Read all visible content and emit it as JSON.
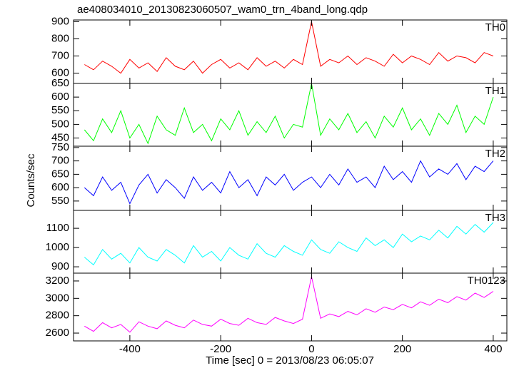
{
  "chart_data": {
    "type": "line",
    "title": "ae408034010_20130823060507_wam0_trn_4band_long.qdp",
    "xlabel": "Time [sec] 0 = 2013/08/23 06:05:07",
    "ylabel": "Counts/sec",
    "xlim": [
      -524,
      430
    ],
    "xticks": [
      -400,
      -200,
      0,
      200,
      400
    ],
    "x": [
      -500,
      -480,
      -460,
      -440,
      -420,
      -400,
      -380,
      -360,
      -340,
      -320,
      -300,
      -280,
      -260,
      -240,
      -220,
      -200,
      -180,
      -160,
      -140,
      -120,
      -100,
      -80,
      -60,
      -40,
      -20,
      0,
      20,
      40,
      60,
      80,
      100,
      120,
      140,
      160,
      180,
      200,
      220,
      240,
      260,
      280,
      300,
      320,
      340,
      360,
      380,
      400
    ],
    "series": [
      {
        "name": "TH0",
        "color": "#ff0000",
        "ylim": [
          540,
          910
        ],
        "yticks": [
          600,
          700,
          800,
          900
        ],
        "values": [
          650,
          620,
          670,
          640,
          600,
          680,
          630,
          660,
          610,
          690,
          640,
          620,
          670,
          600,
          650,
          680,
          630,
          660,
          620,
          690,
          640,
          670,
          630,
          680,
          650,
          900,
          640,
          680,
          660,
          700,
          650,
          690,
          670,
          640,
          710,
          660,
          700,
          680,
          650,
          720,
          670,
          700,
          690,
          660,
          720,
          700
        ]
      },
      {
        "name": "TH1",
        "color": "#00ff00",
        "ylim": [
          420,
          650
        ],
        "yticks": [
          450,
          500,
          550,
          600,
          650
        ],
        "values": [
          480,
          440,
          520,
          470,
          550,
          450,
          500,
          430,
          530,
          480,
          460,
          560,
          470,
          500,
          440,
          520,
          480,
          550,
          460,
          510,
          470,
          530,
          450,
          500,
          490,
          650,
          460,
          520,
          480,
          540,
          470,
          510,
          450,
          530,
          490,
          560,
          480,
          520,
          460,
          540,
          500,
          570,
          470,
          530,
          500,
          600
        ]
      },
      {
        "name": "TH2",
        "color": "#0000ff",
        "ylim": [
          515,
          755
        ],
        "yticks": [
          550,
          600,
          650,
          700,
          750
        ],
        "values": [
          600,
          570,
          640,
          590,
          620,
          540,
          610,
          650,
          580,
          630,
          600,
          560,
          640,
          590,
          620,
          580,
          660,
          600,
          630,
          570,
          640,
          610,
          650,
          590,
          620,
          640,
          600,
          650,
          610,
          670,
          620,
          640,
          600,
          680,
          630,
          660,
          620,
          700,
          640,
          670,
          650,
          690,
          630,
          680,
          660,
          700
        ]
      },
      {
        "name": "TH3",
        "color": "#00ffff",
        "ylim": [
          867,
          1193
        ],
        "yticks": [
          900,
          1000,
          1100
        ],
        "values": [
          950,
          910,
          990,
          940,
          970,
          920,
          1000,
          950,
          930,
          990,
          960,
          920,
          1010,
          950,
          980,
          930,
          1000,
          960,
          940,
          1020,
          970,
          950,
          1010,
          980,
          960,
          1040,
          990,
          970,
          1030,
          1000,
          980,
          1050,
          1010,
          1040,
          1000,
          1070,
          1030,
          1060,
          1040,
          1090,
          1050,
          1110,
          1070,
          1120,
          1080,
          1130
        ]
      },
      {
        "name": "TH0123",
        "color": "#ff00ff",
        "ylim": [
          2510,
          3290
        ],
        "yticks": [
          2600,
          2800,
          3000,
          3200
        ],
        "values": [
          2680,
          2620,
          2720,
          2660,
          2700,
          2610,
          2730,
          2680,
          2650,
          2740,
          2690,
          2660,
          2750,
          2700,
          2680,
          2760,
          2710,
          2690,
          2770,
          2720,
          2700,
          2780,
          2740,
          2710,
          2760,
          3250,
          2770,
          2820,
          2790,
          2850,
          2810,
          2880,
          2840,
          2900,
          2870,
          2930,
          2890,
          2960,
          2920,
          2990,
          2950,
          3020,
          2980,
          3060,
          3010,
          3080
        ]
      }
    ]
  }
}
